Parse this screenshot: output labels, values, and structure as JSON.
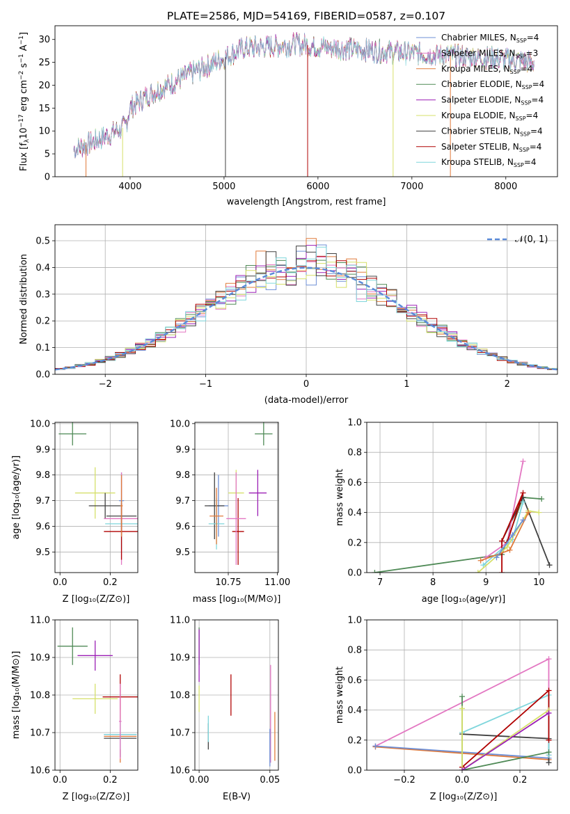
{
  "colors": {
    "chabrier_miles": "#6d8fd6",
    "salpeter_miles": "#e377c2",
    "kroupa_miles": "#e07a3a",
    "chabrier_elodie": "#4f8a56",
    "salpeter_elodie": "#9b1fb5",
    "kroupa_elodie": "#d6e06a",
    "chabrier_stelib": "#404040",
    "salpeter_stelib": "#b00000",
    "kroupa_stelib": "#7fd6dc",
    "normal": "#5b8bd8"
  },
  "chart_data": [
    {
      "id": "spectrum",
      "type": "line",
      "title": "PLATE=2586, MJD=54169, FIBERID=0587, z=0.107",
      "xlabel": "wavelength [Angstrom, rest frame]",
      "ylabel": "Flux [f$_\\lambda$10$^{-17}$ erg cm$^{-2}$ s$^{-1}$ A$^{-1}$]",
      "ylabel_parts": [
        "Flux [f",
        "λ",
        "10",
        "−17",
        " erg cm",
        "−2",
        " s",
        "−1",
        " A",
        "−1",
        "]"
      ],
      "xlim": [
        3200,
        8550
      ],
      "ylim": [
        0,
        33
      ],
      "xticks": [
        4000,
        5000,
        6000,
        7000,
        8000
      ],
      "yticks": [
        0,
        5,
        10,
        15,
        20,
        25,
        30
      ],
      "continuum": [
        [
          3400,
          6
        ],
        [
          3600,
          7.5
        ],
        [
          3800,
          9.5
        ],
        [
          3950,
          11
        ],
        [
          4000,
          15
        ],
        [
          4200,
          18
        ],
        [
          4500,
          21
        ],
        [
          4800,
          24
        ],
        [
          5000,
          26
        ],
        [
          5200,
          28
        ],
        [
          5500,
          28.5
        ],
        [
          5800,
          29
        ],
        [
          6000,
          28.5
        ],
        [
          6300,
          28
        ],
        [
          6600,
          27.5
        ],
        [
          7000,
          27
        ],
        [
          7400,
          26.5
        ],
        [
          7800,
          26
        ],
        [
          8300,
          25
        ]
      ],
      "legend_entries": [
        {
          "main": "Chabrier MILES, N",
          "sub": "SSP",
          "tail": "=4",
          "color_key": "chabrier_miles"
        },
        {
          "main": "Salpeter MILES, N",
          "sub": "SSP",
          "tail": "=3",
          "color_key": "salpeter_miles"
        },
        {
          "main": "Kroupa MILES, N",
          "sub": "SSP",
          "tail": "=4",
          "color_key": "kroupa_miles"
        },
        {
          "main": "Chabrier ELODIE, N",
          "sub": "SSP",
          "tail": "=4",
          "color_key": "chabrier_elodie"
        },
        {
          "main": "Salpeter ELODIE, N",
          "sub": "SSP",
          "tail": "=4",
          "color_key": "salpeter_elodie"
        },
        {
          "main": "Kroupa ELODIE, N",
          "sub": "SSP",
          "tail": "=4",
          "color_key": "kroupa_elodie"
        },
        {
          "main": "Chabrier STELIB, N",
          "sub": "SSP",
          "tail": "=4",
          "color_key": "chabrier_stelib"
        },
        {
          "main": "Salpeter STELIB, N",
          "sub": "SSP",
          "tail": "=4",
          "color_key": "salpeter_stelib"
        },
        {
          "main": "Kroupa STELIB, N",
          "sub": "SSP",
          "tail": "=4",
          "color_key": "kroupa_stelib"
        }
      ],
      "legend_placement": "upper-right"
    },
    {
      "id": "residuals",
      "type": "line",
      "xlabel": "(data-model)/error",
      "ylabel": "Normed distribution",
      "xlim": [
        -2.5,
        2.5
      ],
      "ylim": [
        0,
        0.56
      ],
      "xticks": [
        -2,
        -1,
        0,
        1,
        2
      ],
      "xticklabels": [
        "−2",
        "−1",
        "0",
        "1",
        "2"
      ],
      "yticks": [
        0.0,
        0.1,
        0.2,
        0.3,
        0.4,
        0.5
      ],
      "yticklabels": [
        "0.0",
        "0.1",
        "0.2",
        "0.3",
        "0.4",
        "0.5"
      ],
      "grid": true,
      "legend_label": "𝒩(0, 1)",
      "legend_placement": "upper-right"
    },
    {
      "id": "age_vs_z",
      "type": "scatter",
      "xlabel": "Z [log₁₀(Z/Z⊙)]",
      "ylabel": "age  [log₁₀(age/yr)]",
      "xlim": [
        -0.02,
        0.31
      ],
      "ylim": [
        9.42,
        10.005
      ],
      "xticks": [
        0.0,
        0.2
      ],
      "xticklabels": [
        "0.0",
        "0.2"
      ],
      "yticks": [
        9.5,
        9.6,
        9.7,
        9.8,
        9.9,
        10.0
      ],
      "yticklabels": [
        "9.5",
        "9.6",
        "9.7",
        "9.8",
        "9.9",
        "10.0"
      ],
      "grid": true,
      "points": [
        {
          "x": 0.05,
          "y": 9.96,
          "xe": 0.055,
          "ye": 0.045,
          "c": "chabrier_elodie"
        },
        {
          "x": 0.14,
          "y": 9.73,
          "xe": 0.08,
          "ye": 0.1,
          "c": "kroupa_elodie"
        },
        {
          "x": 0.18,
          "y": 9.68,
          "xe": 0.065,
          "ye": 0.05,
          "c": "chabrier_stelib"
        },
        {
          "x": 0.245,
          "y": 9.7,
          "xe": 0.01,
          "ye": 0.11,
          "c": "chabrier_miles"
        },
        {
          "x": 0.245,
          "y": 9.64,
          "xe": 0.06,
          "ye": 0.06,
          "c": "chabrier_stelib"
        },
        {
          "x": 0.245,
          "y": 9.63,
          "xe": 0.07,
          "ye": 0.18,
          "c": "salpeter_miles"
        },
        {
          "x": 0.245,
          "y": 9.61,
          "xe": 0.065,
          "ye": 0.1,
          "c": "kroupa_stelib"
        },
        {
          "x": 0.245,
          "y": 9.58,
          "xe": 0.07,
          "ye": 0.11,
          "c": "salpeter_stelib"
        },
        {
          "x": 0.245,
          "y": 9.68,
          "xe": 0.005,
          "ye": 0.12,
          "c": "kroupa_miles"
        }
      ]
    },
    {
      "id": "age_vs_mass",
      "type": "scatter",
      "xlabel": "mass [log₁₀(M/M⊙)]",
      "xlim": [
        10.58,
        11.005
      ],
      "ylim": [
        9.42,
        10.005
      ],
      "xticks": [
        10.75,
        11.0
      ],
      "xticklabels": [
        "10.75",
        "11.00"
      ],
      "yticks": [
        9.5,
        9.6,
        9.7,
        9.8,
        9.9,
        10.0
      ],
      "yticklabels": [
        "9.5",
        "9.6",
        "9.7",
        "9.8",
        "9.9",
        "10.0"
      ],
      "grid": true,
      "points": [
        {
          "x": 10.93,
          "y": 9.96,
          "xe": 0.045,
          "ye": 0.045,
          "c": "chabrier_elodie"
        },
        {
          "x": 10.9,
          "y": 9.73,
          "xe": 0.045,
          "ye": 0.09,
          "c": "salpeter_elodie"
        },
        {
          "x": 10.79,
          "y": 9.73,
          "xe": 0.04,
          "ye": 0.09,
          "c": "kroupa_elodie"
        },
        {
          "x": 10.8,
          "y": 9.58,
          "xe": 0.03,
          "ye": 0.13,
          "c": "salpeter_stelib"
        },
        {
          "x": 10.7,
          "y": 9.68,
          "xe": 0.05,
          "ye": 0.12,
          "c": "chabrier_miles"
        },
        {
          "x": 10.68,
          "y": 9.68,
          "xe": 0.05,
          "ye": 0.13,
          "c": "chabrier_stelib"
        },
        {
          "x": 10.69,
          "y": 9.61,
          "xe": 0.04,
          "ye": 0.1,
          "c": "kroupa_stelib"
        },
        {
          "x": 10.79,
          "y": 9.63,
          "xe": 0.05,
          "ye": 0.18,
          "c": "salpeter_miles"
        },
        {
          "x": 10.69,
          "y": 9.64,
          "xe": 0.035,
          "ye": 0.11,
          "c": "kroupa_miles"
        }
      ]
    },
    {
      "id": "weight_vs_age",
      "type": "line",
      "xlabel": "age  [log₁₀(age/yr)]",
      "ylabel": "mass weight",
      "xlim": [
        6.75,
        10.35
      ],
      "ylim": [
        0,
        1.0
      ],
      "xticks": [
        7,
        8,
        9,
        10
      ],
      "xticklabels": [
        "7",
        "8",
        "9",
        "10"
      ],
      "yticks": [
        0.0,
        0.2,
        0.4,
        0.6,
        0.8,
        1.0
      ],
      "yticklabels": [
        "0.0",
        "0.2",
        "0.4",
        "0.6",
        "0.8",
        "1.0"
      ],
      "grid": true,
      "series": [
        {
          "c": "chabrier_elodie",
          "pts": [
            [
              6.9,
              0.0
            ],
            [
              9.3,
              0.12
            ],
            [
              9.7,
              0.5
            ],
            [
              10.05,
              0.49
            ]
          ]
        },
        {
          "c": "chabrier_stelib",
          "pts": [
            [
              9.3,
              0.21
            ],
            [
              9.7,
              0.5
            ],
            [
              10.2,
              0.05
            ]
          ]
        },
        {
          "c": "salpeter_miles",
          "pts": [
            [
              9.0,
              0.1
            ],
            [
              9.4,
              0.2
            ],
            [
              9.7,
              0.74
            ]
          ]
        },
        {
          "c": "salpeter_stelib",
          "pts": [
            [
              9.3,
              0.0
            ],
            [
              9.3,
              0.21
            ],
            [
              9.7,
              0.53
            ],
            [
              9.4,
              0.2
            ]
          ]
        },
        {
          "c": "kroupa_stelib",
          "pts": [
            [
              8.95,
              0.05
            ],
            [
              9.5,
              0.22
            ],
            [
              9.7,
              0.47
            ]
          ]
        },
        {
          "c": "kroupa_elodie",
          "pts": [
            [
              8.85,
              0.0
            ],
            [
              9.4,
              0.17
            ],
            [
              9.8,
              0.41
            ],
            [
              10.0,
              0.4
            ]
          ]
        },
        {
          "c": "kroupa_miles",
          "pts": [
            [
              8.9,
              0.08
            ],
            [
              9.45,
              0.15
            ],
            [
              9.8,
              0.4
            ]
          ]
        },
        {
          "c": "chabrier_miles",
          "pts": [
            [
              9.2,
              0.1
            ],
            [
              9.5,
              0.25
            ],
            [
              9.7,
              0.35
            ]
          ]
        }
      ]
    },
    {
      "id": "mass_vs_z",
      "type": "scatter",
      "xlabel": "Z [log₁₀(Z/Z⊙)]",
      "ylabel": "mass [log₁₀(M/M⊙)]",
      "xlim": [
        -0.02,
        0.31
      ],
      "ylim": [
        10.6,
        11.0
      ],
      "xticks": [
        0.0,
        0.2
      ],
      "xticklabels": [
        "0.0",
        "0.2"
      ],
      "yticks": [
        10.6,
        10.7,
        10.8,
        10.9,
        11.0
      ],
      "yticklabels": [
        "10.6",
        "10.7",
        "10.8",
        "10.9",
        "11.0"
      ],
      "grid": true,
      "points": [
        {
          "x": 0.05,
          "y": 10.93,
          "xe": 0.06,
          "ye": 0.05,
          "c": "chabrier_elodie"
        },
        {
          "x": 0.14,
          "y": 10.905,
          "xe": 0.07,
          "ye": 0.04,
          "c": "salpeter_elodie"
        },
        {
          "x": 0.14,
          "y": 10.79,
          "xe": 0.09,
          "ye": 0.04,
          "c": "kroupa_elodie"
        },
        {
          "x": 0.24,
          "y": 10.795,
          "xe": 0.07,
          "ye": 0.06,
          "c": "salpeter_stelib"
        },
        {
          "x": 0.24,
          "y": 10.695,
          "xe": 0.065,
          "ye": 0.06,
          "c": "chabrier_miles"
        },
        {
          "x": 0.24,
          "y": 10.69,
          "xe": 0.065,
          "ye": 0.07,
          "c": "kroupa_miles"
        },
        {
          "x": 0.24,
          "y": 10.685,
          "xe": 0.065,
          "ye": 0.05,
          "c": "chabrier_stelib"
        },
        {
          "x": 0.24,
          "y": 10.695,
          "xe": 0.065,
          "ye": 0.04,
          "c": "kroupa_stelib"
        },
        {
          "x": 0.24,
          "y": 10.73,
          "xe": 0.005,
          "ye": 0.1,
          "c": "salpeter_miles"
        }
      ]
    },
    {
      "id": "mass_vs_ebv",
      "type": "scatter",
      "xlabel": "E(B-V)",
      "xlim": [
        -0.003,
        0.056
      ],
      "ylim": [
        10.6,
        11.0
      ],
      "xticks": [
        0.0,
        0.05
      ],
      "xticklabels": [
        "0.00",
        "0.05"
      ],
      "yticks": [
        10.6,
        10.7,
        10.8,
        10.9,
        11.0
      ],
      "yticklabels": [
        "10.6",
        "10.7",
        "10.8",
        "10.9",
        "11.0"
      ],
      "grid": true,
      "points": [
        {
          "x": 0.0,
          "y": 10.93,
          "xe": 0,
          "ye": 0.05,
          "c": "chabrier_elodie"
        },
        {
          "x": 0.0,
          "y": 10.905,
          "xe": 0,
          "ye": 0.07,
          "c": "salpeter_elodie"
        },
        {
          "x": 0.0,
          "y": 10.79,
          "xe": 0,
          "ye": 0.035,
          "c": "kroupa_elodie"
        },
        {
          "x": 0.0065,
          "y": 10.69,
          "xe": 0,
          "ye": 0.035,
          "c": "chabrier_stelib"
        },
        {
          "x": 0.0065,
          "y": 10.71,
          "xe": 0,
          "ye": 0.035,
          "c": "kroupa_stelib"
        },
        {
          "x": 0.0225,
          "y": 10.8,
          "xe": 0,
          "ye": 0.055,
          "c": "salpeter_stelib"
        },
        {
          "x": 0.0505,
          "y": 10.75,
          "xe": 0,
          "ye": 0.13,
          "c": "salpeter_miles"
        },
        {
          "x": 0.05,
          "y": 10.66,
          "xe": 0,
          "ye": 0.05,
          "c": "chabrier_miles"
        },
        {
          "x": 0.0535,
          "y": 10.69,
          "xe": 0,
          "ye": 0.065,
          "c": "kroupa_miles"
        }
      ]
    },
    {
      "id": "weight_vs_z",
      "type": "line",
      "xlabel": "Z [log₁₀(Z/Z⊙)]",
      "ylabel": "mass weight",
      "xlim": [
        -0.33,
        0.33
      ],
      "ylim": [
        0,
        1.0
      ],
      "xticks": [
        -0.2,
        0.0,
        0.2
      ],
      "xticklabels": [
        "−0.2",
        "0.0",
        "0.2"
      ],
      "yticks": [
        0.0,
        0.2,
        0.4,
        0.6,
        0.8,
        1.0
      ],
      "yticklabels": [
        "0.0",
        "0.2",
        "0.4",
        "0.6",
        "0.8",
        "1.0"
      ],
      "grid": true,
      "series": [
        {
          "c": "salpeter_miles",
          "pts": [
            [
              -0.3,
              0.16
            ],
            [
              0.3,
              0.74
            ],
            [
              0.3,
              0.1
            ]
          ]
        },
        {
          "c": "kroupa_miles",
          "pts": [
            [
              -0.3,
              0.155
            ],
            [
              0.3,
              0.07
            ]
          ]
        },
        {
          "c": "chabrier_miles",
          "pts": [
            [
              -0.3,
              0.16
            ],
            [
              0.3,
              0.08
            ]
          ]
        },
        {
          "c": "chabrier_stelib",
          "pts": [
            [
              0.0,
              0.24
            ],
            [
              0.3,
              0.21
            ],
            [
              0.3,
              0.05
            ]
          ]
        },
        {
          "c": "kroupa_stelib",
          "pts": [
            [
              0.0,
              0.25
            ],
            [
              0.3,
              0.5
            ],
            [
              0.3,
              0.1
            ]
          ]
        },
        {
          "c": "chabrier_elodie",
          "pts": [
            [
              0.0,
              0.49
            ],
            [
              0.0,
              0.0
            ],
            [
              0.3,
              0.12
            ]
          ]
        },
        {
          "c": "salpeter_stelib",
          "pts": [
            [
              0.0,
              0.02
            ],
            [
              0.3,
              0.53
            ],
            [
              0.3,
              0.2
            ]
          ]
        },
        {
          "c": "kroupa_elodie",
          "pts": [
            [
              0.0,
              0.41
            ],
            [
              0.0,
              0.0
            ],
            [
              0.3,
              0.4
            ]
          ]
        },
        {
          "c": "salpeter_elodie",
          "pts": [
            [
              0.0,
              0.0
            ],
            [
              0.3,
              0.38
            ]
          ]
        }
      ]
    }
  ]
}
